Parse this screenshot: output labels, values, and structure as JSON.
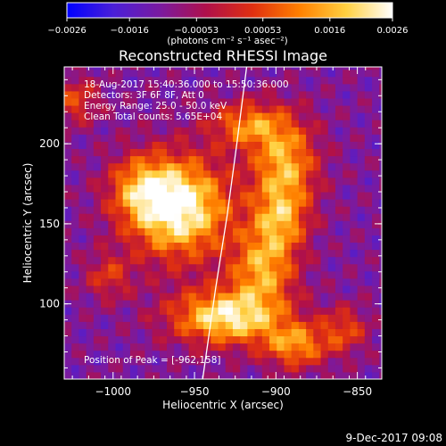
{
  "chart_data": {
    "type": "heatmap",
    "title": "Reconstructed RHESSI Image",
    "xlabel": "Heliocentric X (arcsec)",
    "ylabel": "Heliocentric Y (arcsec)",
    "xlim": [
      -1030,
      -835
    ],
    "ylim": [
      53,
      248
    ],
    "xticks": [
      -1000,
      -950,
      -900,
      -850
    ],
    "xtick_labels": [
      "−1000",
      "−950",
      "−900",
      "−850"
    ],
    "yticks": [
      100,
      150,
      200
    ],
    "ytick_labels": [
      "100",
      "150",
      "200"
    ],
    "colorbar": {
      "range": [
        -0.0026,
        0.0026
      ],
      "ticks": [
        -0.0026,
        -0.0016,
        -0.00053,
        0.00053,
        0.0016,
        0.0026
      ],
      "tick_labels": [
        "−0.0026",
        "−0.0016",
        "−0.00053",
        "0.00053",
        "0.0016",
        "0.0026"
      ],
      "unit_label": "(photons cm⁻² s⁻¹ asec⁻²)",
      "colors": [
        "#0000ff",
        "#4a1fd8",
        "#7a1aa0",
        "#b0104a",
        "#e03010",
        "#ff8000",
        "#ffd040",
        "#ffffff"
      ]
    },
    "annotations": [
      "18-Aug-2017 15:40:36.000 to 15:50:36.000",
      "Detectors: 3F 6F 8F, Att 0",
      "Energy Range: 25.0 - 50.0 keV",
      "Clean     Total counts: 5.65E+04"
    ],
    "peak_label": "Position of Peak = [-962,158]",
    "peak": [
      -962,
      158
    ],
    "blobs": [
      {
        "x": -962,
        "y": 158,
        "sx": 22,
        "sy": 22,
        "a": 1.0
      },
      {
        "x": -985,
        "y": 170,
        "sx": 14,
        "sy": 14,
        "a": 0.45
      },
      {
        "x": -920,
        "y": 210,
        "sx": 16,
        "sy": 10,
        "a": 0.55
      },
      {
        "x": -897,
        "y": 185,
        "sx": 14,
        "sy": 20,
        "a": 0.7
      },
      {
        "x": -900,
        "y": 150,
        "sx": 12,
        "sy": 14,
        "a": 0.55
      },
      {
        "x": -910,
        "y": 120,
        "sx": 14,
        "sy": 16,
        "a": 0.65
      },
      {
        "x": -932,
        "y": 90,
        "sx": 24,
        "sy": 12,
        "a": 0.9
      },
      {
        "x": -890,
        "y": 72,
        "sx": 14,
        "sy": 10,
        "a": 0.6
      },
      {
        "x": -1005,
        "y": 115,
        "sx": 10,
        "sy": 10,
        "a": 0.35
      },
      {
        "x": -1025,
        "y": 225,
        "sx": 10,
        "sy": 10,
        "a": 0.4
      },
      {
        "x": -860,
        "y": 82,
        "sx": 10,
        "sy": 10,
        "a": 0.4
      }
    ],
    "limb": [
      {
        "x": -945,
        "y": 53
      },
      {
        "x": -937,
        "y": 110
      },
      {
        "x": -930,
        "y": 155
      },
      {
        "x": -924,
        "y": 200
      },
      {
        "x": -918,
        "y": 248
      }
    ],
    "grid": false
  },
  "footer": {
    "timestamp": "9-Dec-2017 09:08"
  }
}
